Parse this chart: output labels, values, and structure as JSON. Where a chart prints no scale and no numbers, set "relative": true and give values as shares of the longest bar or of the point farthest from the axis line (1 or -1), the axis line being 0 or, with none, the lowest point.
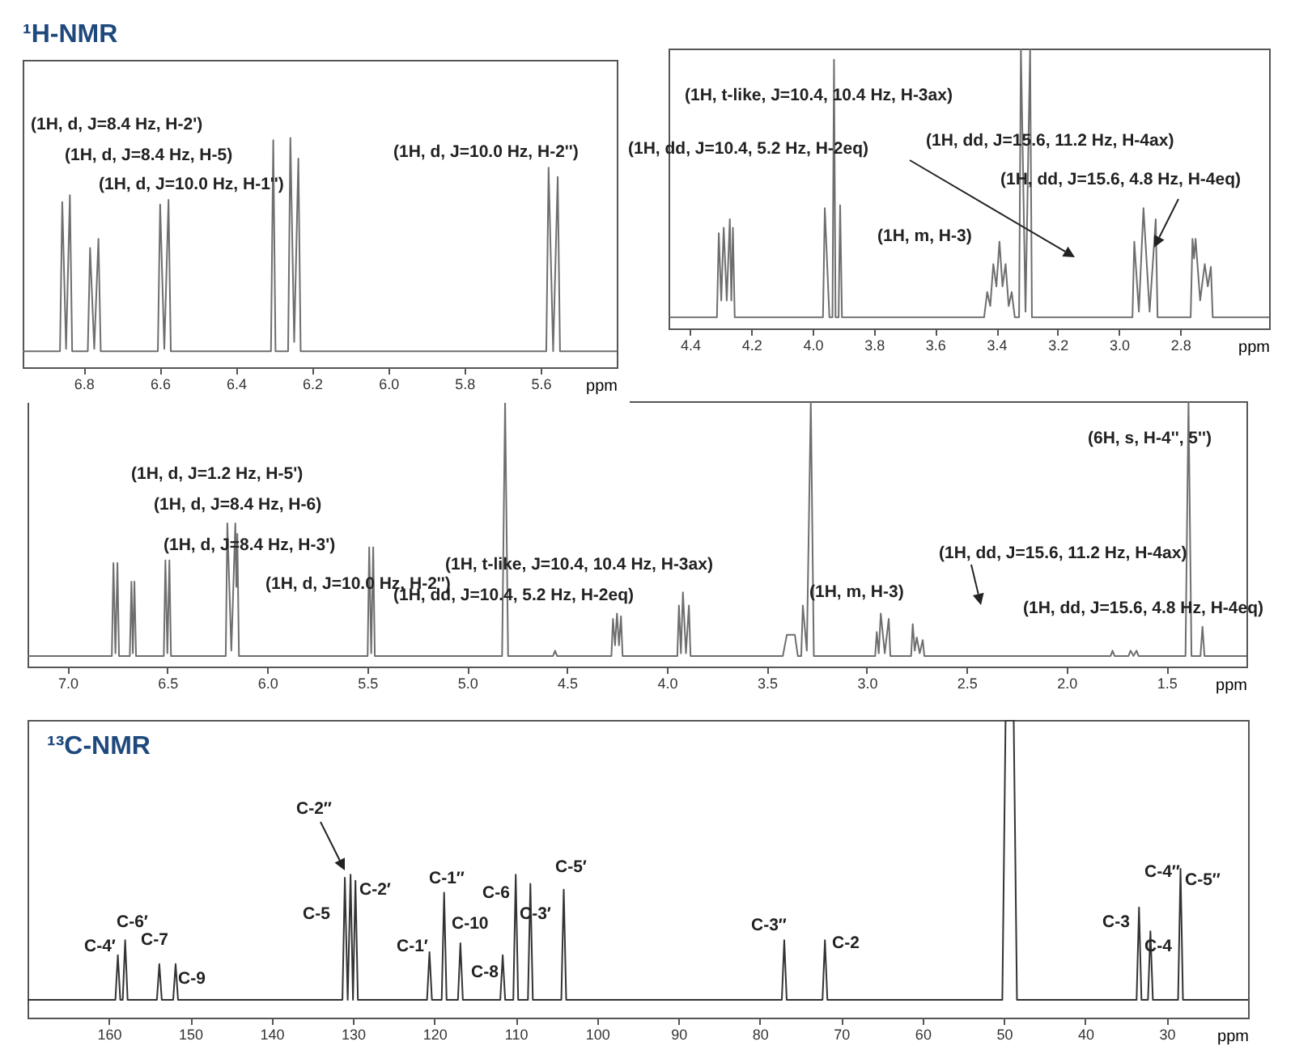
{
  "chart_data": [
    {
      "type": "line",
      "title": "¹H-NMR",
      "xlabel": "ppm",
      "relative": true,
      "xlim": [
        6.96,
        5.4
      ],
      "xticks": [
        6.8,
        6.6,
        6.4,
        6.2,
        {
          "value": 6,
          "label": "6.0"
        },
        5.8,
        5.6
      ],
      "series": [
        {
          "color": "#6e6e6e",
          "x": [
            6.96,
            6.862,
            6.856,
            6.846,
            6.836,
            6.83,
            6.789,
            6.783,
            6.772,
            6.761,
            6.755,
            6.605,
            6.599,
            6.588,
            6.577,
            6.571,
            6.308,
            6.302,
            6.296,
            6.263,
            6.257,
            6.247,
            6.236,
            6.23,
            5.585,
            5.579,
            5.567,
            5.555,
            5.549,
            5.4
          ],
          "values": [
            0.07,
            0.07,
            0.72,
            0.08,
            0.75,
            0.07,
            0.07,
            0.52,
            0.08,
            0.56,
            0.07,
            0.07,
            0.71,
            0.08,
            0.73,
            0.07,
            0.07,
            0.99,
            0.07,
            0.07,
            1,
            0.11,
            0.91,
            0.07,
            0.07,
            0.87,
            0.07,
            0.83,
            0.07,
            0.07
          ]
        }
      ],
      "annotations": [
        "(1H, d, J=8.4 Hz, H-2')",
        "(1H, d, J=8.4 Hz, H-5)",
        "(1H, d, J=10.0 Hz, H-1'')",
        "(1H, d, J=10.0 Hz, H-2'')"
      ]
    },
    {
      "type": "line",
      "xlabel": "ppm",
      "relative": true,
      "xlim": [
        4.47,
        2.51
      ],
      "xticks": [
        4.4,
        4.2,
        {
          "value": 4,
          "label": "4.0"
        },
        3.8,
        3.6,
        3.4,
        3.2,
        {
          "value": 3,
          "label": "3.0"
        },
        2.8
      ],
      "series": [
        {
          "color": "#6e6e6e",
          "x": [
            4.47,
            4.312,
            4.306,
            4.298,
            4.29,
            4.28,
            4.27,
            4.265,
            4.26,
            4.254,
            3.966,
            3.96,
            3.945,
            3.935,
            3.93,
            3.925,
            3.915,
            3.91,
            3.904,
            3.44,
            3.43,
            3.42,
            3.41,
            3.4,
            3.39,
            3.38,
            3.37,
            3.36,
            3.35,
            3.34,
            3.326,
            3.32,
            3.305,
            3.29,
            3.284,
            2.956,
            2.95,
            2.935,
            2.92,
            2.9,
            2.88,
            2.874,
            2.766,
            2.76,
            2.755,
            2.75,
            2.735,
            2.72,
            2.71,
            2.7,
            2.694,
            2.51
          ],
          "values": [
            0.04,
            0.04,
            0.34,
            0.1,
            0.36,
            0.1,
            0.39,
            0.1,
            0.36,
            0.04,
            0.04,
            0.43,
            0.04,
            0.04,
            0.96,
            0.04,
            0.04,
            0.44,
            0.04,
            0.04,
            0.13,
            0.08,
            0.23,
            0.15,
            0.31,
            0.15,
            0.23,
            0.08,
            0.13,
            0.04,
            0.04,
            1,
            0.06,
            1,
            0.04,
            0.04,
            0.31,
            0.06,
            0.43,
            0.06,
            0.39,
            0.04,
            0.04,
            0.32,
            0.25,
            0.32,
            0.1,
            0.23,
            0.15,
            0.22,
            0.04,
            0.04
          ]
        }
      ],
      "annotations": [
        "(1H, t-like, J=10.4, 10.4 Hz, H-3ax)",
        "(1H, dd, J=10.4, 5.2 Hz, H-2eq)",
        "(1H, m, H-3)",
        "(1H, dd, J=15.6, 11.2 Hz, H-4ax)",
        "(1H, dd, J=15.6, 4.8 Hz, H-4eq)"
      ]
    },
    {
      "type": "line",
      "xlabel": "ppm",
      "relative": true,
      "xlim": [
        7.2,
        1.1
      ],
      "xticks": [
        {
          "value": 7,
          "label": "7.0"
        },
        6.5,
        {
          "value": 6,
          "label": "6.0"
        },
        5.5,
        {
          "value": 5,
          "label": "5.0"
        },
        4.5,
        {
          "value": 4,
          "label": "4.0"
        },
        3.5,
        {
          "value": 3,
          "label": "3.0"
        },
        2.5,
        {
          "value": 2,
          "label": "2.0"
        },
        1.5
      ],
      "series": [
        {
          "color": "#6e6e6e",
          "x": [
            7.2,
            6.778,
            6.77,
            6.76,
            6.75,
            6.742,
            6.688,
            6.68,
            6.673,
            6.665,
            6.657,
            6.518,
            6.51,
            6.5,
            6.49,
            6.482,
            6.208,
            6.2,
            6.18,
            6.16,
            6.155,
            6.15,
            6.142,
            5.498,
            5.49,
            5.48,
            5.47,
            5.462,
            4.825,
            4.81,
            4.795,
            4.57,
            4.56,
            4.55,
            4.278,
            4.27,
            4.26,
            4.25,
            4.24,
            4.23,
            4.222,
            3.948,
            3.94,
            3.93,
            3.92,
            3.905,
            3.89,
            3.882,
            3.42,
            3.4,
            3.36,
            3.345,
            3.328,
            3.32,
            3.3,
            3.28,
            3.265,
            2.958,
            2.95,
            2.94,
            2.93,
            2.91,
            2.89,
            2.882,
            2.778,
            2.77,
            2.76,
            2.75,
            2.735,
            2.72,
            2.712,
            1.78,
            1.77,
            1.76,
            1.69,
            1.68,
            1.665,
            1.65,
            1.64,
            1.405,
            1.39,
            1.375,
            1.33,
            1.32,
            1.31,
            1.1
          ],
          "values": [
            0.04,
            0.04,
            0.39,
            0.05,
            0.39,
            0.04,
            0.04,
            0.32,
            0.05,
            0.32,
            0.04,
            0.04,
            0.4,
            0.05,
            0.4,
            0.04,
            0.04,
            0.54,
            0.06,
            0.54,
            0.3,
            0.5,
            0.04,
            0.04,
            0.45,
            0.05,
            0.45,
            0.04,
            0.04,
            1,
            0.04,
            0.04,
            0.06,
            0.04,
            0.04,
            0.18,
            0.08,
            0.2,
            0.08,
            0.19,
            0.04,
            0.04,
            0.23,
            0.05,
            0.28,
            0.05,
            0.23,
            0.04,
            0.04,
            0.12,
            0.12,
            0.04,
            0.04,
            0.23,
            0.06,
            1,
            0.04,
            0.04,
            0.13,
            0.05,
            0.2,
            0.05,
            0.18,
            0.04,
            0.04,
            0.16,
            0.06,
            0.11,
            0.05,
            0.1,
            0.04,
            0.04,
            0.06,
            0.04,
            0.04,
            0.06,
            0.04,
            0.06,
            0.04,
            0.04,
            1,
            0.04,
            0.04,
            0.15,
            0.04,
            0.04
          ]
        }
      ],
      "annotations": [
        "(1H, d, J=1.2 Hz, H-5')",
        "(1H, d, J=8.4 Hz, H-6)",
        "(1H, d, J=8.4 Hz, H-3')",
        "(1H, d, J=10.0 Hz, H-2'')",
        "(1H, t-like, J=10.4, 10.4 Hz, H-3ax)",
        "(1H, dd, J=10.4, 5.2 Hz, H-2eq)",
        "(1H, m, H-3)",
        "(1H, dd, J=15.6, 11.2 Hz, H-4ax)",
        "(1H, dd, J=15.6, 4.8 Hz, H-4eq)",
        "(6H, s, H-4'', 5'')"
      ]
    },
    {
      "type": "line",
      "title": "¹³C-NMR",
      "xlabel": "ppm",
      "relative": true,
      "xlim": [
        170,
        20
      ],
      "xticks": [
        160,
        150,
        140,
        130,
        120,
        110,
        100,
        90,
        80,
        70,
        60,
        50,
        40,
        30
      ],
      "series": [
        {
          "color": "#333333",
          "x": [
            170,
            159.2,
            158.9,
            158.6,
            158.3,
            158.0,
            157.7,
            154.1,
            153.8,
            153.5,
            152.1,
            151.8,
            151.5,
            131.3,
            131.0,
            130.65,
            130.3,
            130.0,
            129.7,
            129.4,
            120.9,
            120.6,
            120.3,
            119.1,
            118.8,
            118.5,
            117.1,
            116.8,
            116.5,
            111.9,
            111.6,
            111.3,
            110.3,
            110.0,
            109.7,
            108.5,
            108.2,
            107.9,
            104.4,
            104.1,
            103.8,
            77.3,
            77.0,
            76.7,
            72.3,
            72.0,
            71.7,
            50.2,
            49.8,
            48.8,
            48.4,
            33.7,
            33.4,
            33.1,
            32.3,
            32.0,
            31.7,
            28.6,
            28.3,
            28.0,
            20
          ],
          "values": [
            0.06,
            0.06,
            0.21,
            0.06,
            0.06,
            0.26,
            0.06,
            0.06,
            0.18,
            0.06,
            0.06,
            0.18,
            0.06,
            0.06,
            0.47,
            0.06,
            0.48,
            0.06,
            0.46,
            0.06,
            0.06,
            0.22,
            0.06,
            0.06,
            0.42,
            0.06,
            0.06,
            0.25,
            0.06,
            0.06,
            0.21,
            0.06,
            0.06,
            0.48,
            0.06,
            0.06,
            0.45,
            0.06,
            0.06,
            0.43,
            0.06,
            0.06,
            0.26,
            0.06,
            0.06,
            0.26,
            0.06,
            0.06,
            1,
            1,
            0.06,
            0.06,
            0.37,
            0.06,
            0.06,
            0.29,
            0.06,
            0.06,
            0.5,
            0.06,
            0.06
          ]
        }
      ],
      "annotations": [
        "C-4′",
        "C-6′",
        "C-7",
        "C-9",
        "C-2″",
        "C-5",
        "C-2′",
        "C-1′",
        "C-1″",
        "C-10",
        "C-8",
        "C-6",
        "C-3′",
        "C-5′",
        "C-3″",
        "C-2",
        "C-3",
        "C-4″",
        "C-5″",
        "C-4"
      ]
    }
  ]
}
